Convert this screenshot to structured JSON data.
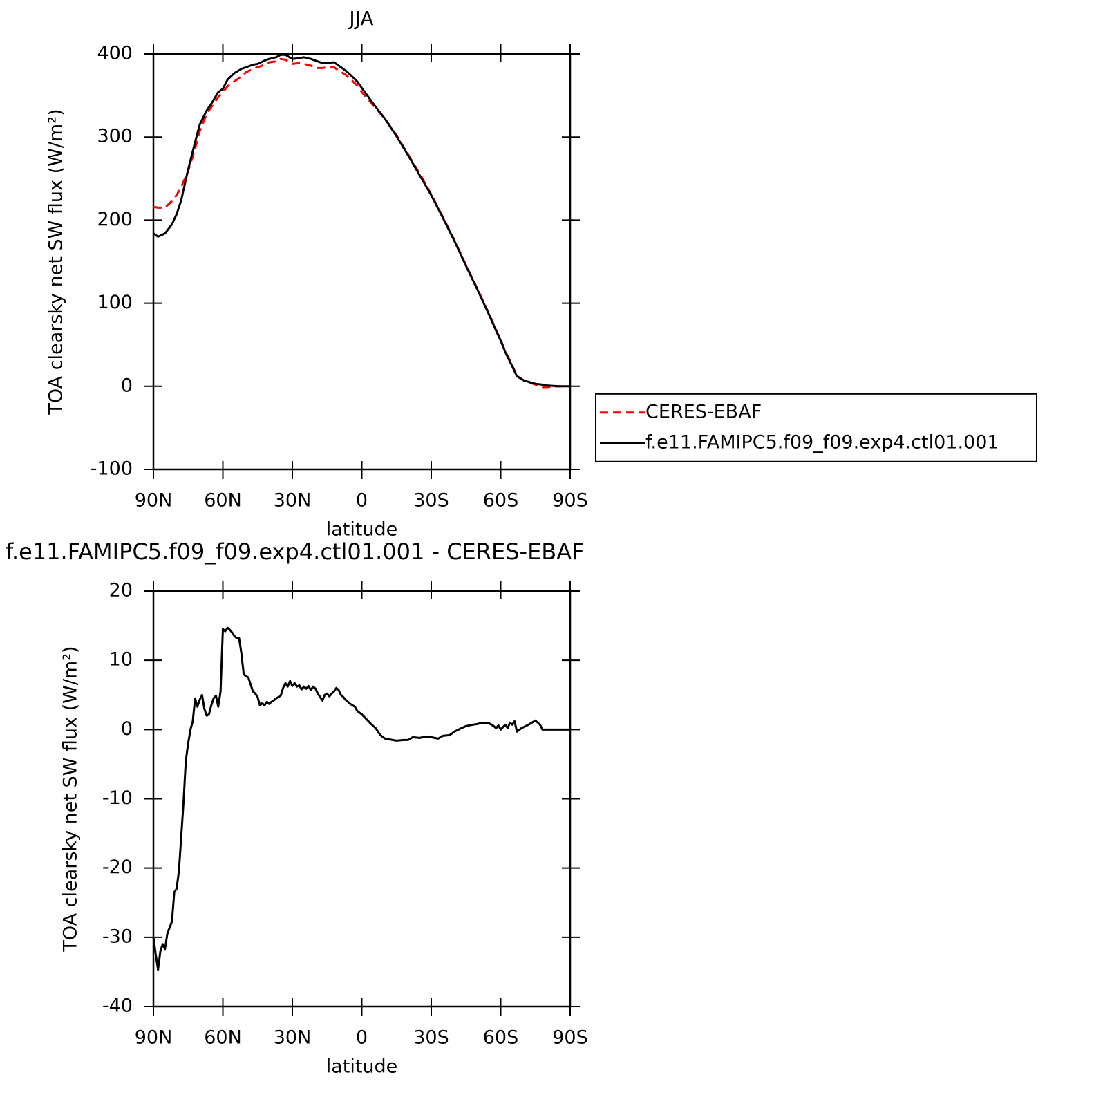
{
  "chart_data": [
    {
      "type": "line",
      "title": "JJA",
      "xlabel": "latitude",
      "ylabel": "TOA clearsky net SW flux (W/m²)",
      "xlim": [
        90,
        -90
      ],
      "xticks": [
        {
          "value": 90,
          "label": "90N"
        },
        {
          "value": 60,
          "label": "60N"
        },
        {
          "value": 30,
          "label": "30N"
        },
        0,
        {
          "value": -30,
          "label": "30S"
        },
        {
          "value": -60,
          "label": "60S"
        },
        {
          "value": -90,
          "label": "90S"
        }
      ],
      "ylim": [
        -100,
        400
      ],
      "yticks": [
        -100,
        0,
        100,
        200,
        300,
        400
      ],
      "legend": "right",
      "x": [
        90,
        88,
        85,
        82,
        80,
        78,
        75,
        72,
        70,
        67,
        65,
        62,
        60,
        58,
        55,
        52,
        50,
        47,
        45,
        42,
        40,
        37,
        35,
        33,
        30,
        27,
        25,
        22,
        20,
        17,
        15,
        12,
        10,
        7,
        5,
        2,
        0,
        -5,
        -10,
        -15,
        -20,
        -25,
        -30,
        -35,
        -40,
        -45,
        -50,
        -55,
        -58,
        -60,
        -62,
        -65,
        -67,
        -70,
        -75,
        -78,
        -80,
        -85,
        -90
      ],
      "series": [
        {
          "name": "CERES-EBAF",
          "color": "#ff0000",
          "dashed": true,
          "values": [
            216,
            215,
            215,
            223,
            230,
            240,
            259,
            286,
            307,
            328,
            336,
            348,
            354,
            361,
            367,
            373,
            378,
            382,
            384,
            387,
            390,
            391,
            394,
            393,
            388,
            389,
            388,
            386,
            383,
            383,
            384,
            384,
            380,
            375,
            370,
            362,
            354,
            338,
            322,
            302,
            279,
            256,
            231,
            204,
            176,
            146,
            117,
            87,
            68,
            56,
            42,
            25,
            13,
            7,
            2,
            -1,
            -1,
            0,
            0
          ]
        },
        {
          "name": "f.e11.FAMIPC5.f09_f09.exp4.ctl01.001",
          "color": "#000000",
          "dashed": false,
          "values": [
            184,
            180,
            184,
            195,
            207,
            224,
            261,
            294,
            315,
            332,
            340,
            354,
            358,
            369,
            377,
            382,
            384,
            387,
            388,
            392,
            394,
            396,
            399,
            399,
            394,
            395,
            396,
            394,
            392,
            389,
            389,
            390,
            386,
            380,
            375,
            367,
            359,
            340,
            322,
            301,
            278,
            254,
            230,
            203,
            175,
            145,
            116,
            86,
            67,
            55,
            41,
            24,
            12,
            7,
            3,
            2,
            1,
            0,
            0
          ]
        }
      ]
    },
    {
      "type": "line",
      "title": "f.e11.FAMIPC5.f09_f09.exp4.ctl01.001 - CERES-EBAF",
      "xlabel": "latitude",
      "ylabel": "TOA clearsky net SW flux (W/m²)",
      "xlim": [
        90,
        -90
      ],
      "xticks": [
        {
          "value": 90,
          "label": "90N"
        },
        {
          "value": 60,
          "label": "60N"
        },
        {
          "value": 30,
          "label": "30N"
        },
        0,
        {
          "value": -30,
          "label": "30S"
        },
        {
          "value": -60,
          "label": "60S"
        },
        {
          "value": -90,
          "label": "90S"
        }
      ],
      "ylim": [
        -40,
        20
      ],
      "yticks": [
        -40,
        -30,
        -20,
        -10,
        0,
        10,
        20
      ],
      "x": [
        90,
        89,
        88,
        87,
        86,
        85,
        84,
        82,
        81,
        80,
        79,
        77,
        76,
        75,
        74,
        73,
        72,
        71,
        70,
        69,
        68,
        67,
        66,
        65,
        64,
        63,
        62,
        61,
        60,
        59,
        58,
        57,
        56,
        55,
        54,
        53,
        52,
        51,
        50,
        49,
        48,
        47,
        46,
        45,
        44,
        43,
        42,
        41,
        40,
        39,
        38,
        37,
        36,
        35,
        34,
        33,
        32,
        31,
        30,
        29,
        28,
        27,
        26,
        25,
        24,
        23,
        22,
        21,
        20,
        19,
        18,
        17,
        16,
        15,
        14,
        13,
        12,
        11,
        10,
        9,
        8,
        7,
        6,
        5,
        3,
        2,
        0,
        -2,
        -4,
        -6,
        -8,
        -10,
        -15,
        -18,
        -20,
        -22,
        -25,
        -28,
        -30,
        -33,
        -35,
        -38,
        -40,
        -43,
        -45,
        -48,
        -50,
        -52,
        -55,
        -57,
        -58,
        -59,
        -60,
        -62,
        -63,
        -64,
        -65,
        -66,
        -67,
        -69,
        -72,
        -75,
        -77,
        -78,
        -90
      ],
      "series": [
        {
          "name": "f.e11.FAMIPC5.f09_f09.exp4.ctl01.001",
          "color": "#000000",
          "dashed": false,
          "values": [
            -30,
            -32.5,
            -34.7,
            -32,
            -31,
            -31.7,
            -29.5,
            -27.7,
            -23.5,
            -23,
            -20.5,
            -10.5,
            -4.5,
            -2,
            0,
            1.2,
            4.5,
            3.3,
            4.3,
            5,
            3,
            2,
            2.2,
            3.5,
            4.5,
            4.9,
            3.3,
            5.5,
            14.5,
            14.2,
            14.7,
            14.4,
            14,
            13.5,
            13.2,
            13.2,
            11,
            8,
            7.7,
            7.5,
            6.5,
            5.5,
            5.2,
            4.7,
            3.5,
            3.8,
            3.5,
            4,
            3.7,
            4,
            4.2,
            4.5,
            4.7,
            4.9,
            6,
            6.7,
            6.2,
            7,
            6.3,
            6.7,
            6.2,
            6.4,
            5.8,
            6.2,
            5.9,
            6.3,
            5.7,
            6.2,
            5.9,
            5.2,
            4.7,
            4.2,
            5,
            5.2,
            4.8,
            5.2,
            5.5,
            6,
            5.7,
            5,
            4.7,
            4.3,
            4,
            3.7,
            3.3,
            2.7,
            2.2,
            1.5,
            0.8,
            0.2,
            -0.8,
            -1.3,
            -1.6,
            -1.5,
            -1.5,
            -1.1,
            -1.2,
            -1,
            -1.1,
            -1.3,
            -0.9,
            -0.8,
            -0.3,
            0.2,
            0.5,
            0.7,
            0.8,
            1,
            0.9,
            0.5,
            0.2,
            0.6,
            0,
            0.7,
            0.2,
            1,
            0.7,
            1.2,
            -0.3,
            0.2,
            0.7,
            1.3,
            0.7,
            0,
            0
          ]
        }
      ]
    }
  ]
}
